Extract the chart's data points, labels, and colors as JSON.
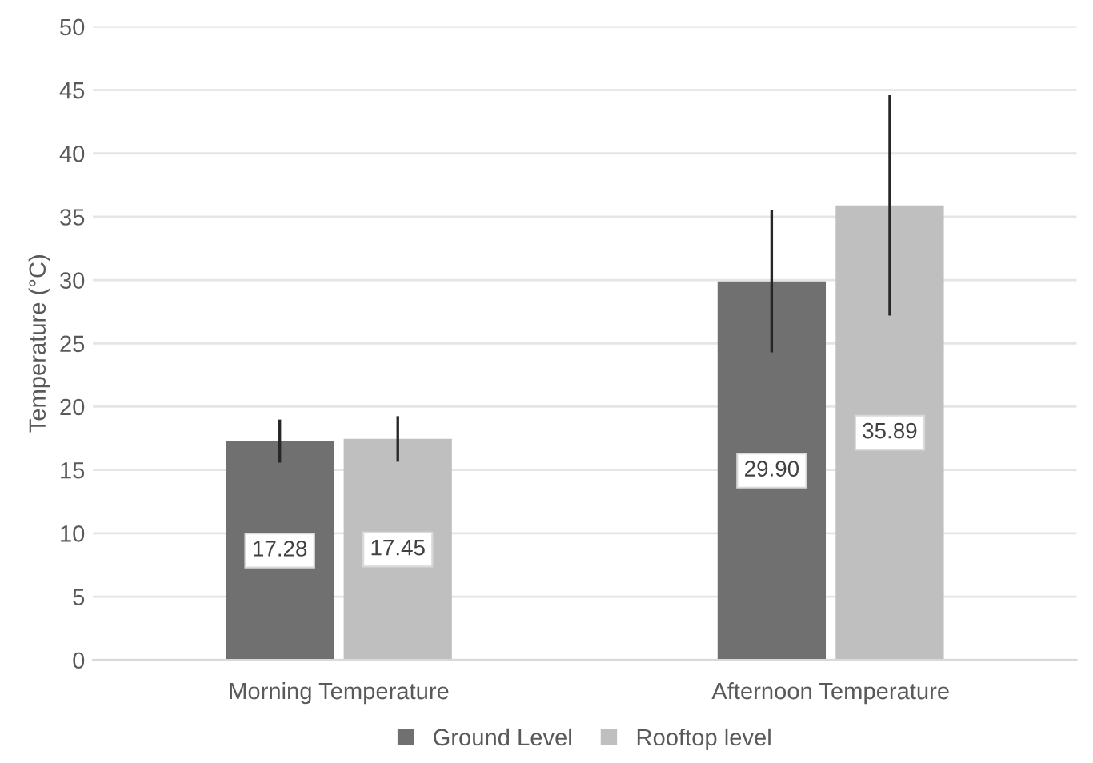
{
  "chart_data": {
    "type": "bar",
    "ylabel": "Temperature (°C)",
    "categories": [
      "Morning Temperature",
      "Afternoon Temperature"
    ],
    "series": [
      {
        "name": "Ground Level",
        "color": "#707070",
        "values": [
          17.28,
          29.9
        ],
        "value_labels": [
          "17.28",
          "29.90"
        ],
        "errors": [
          1.7,
          5.6
        ]
      },
      {
        "name": "Rooftop level",
        "color": "#bfbfbf",
        "values": [
          17.45,
          35.89
        ],
        "value_labels": [
          "17.45",
          "35.89"
        ],
        "errors": [
          1.8,
          8.7
        ]
      }
    ],
    "ylim": [
      0,
      50
    ],
    "yticks": [
      0,
      5,
      10,
      15,
      20,
      25,
      30,
      35,
      40,
      45,
      50
    ],
    "grid": "y",
    "legend": "bottom"
  }
}
